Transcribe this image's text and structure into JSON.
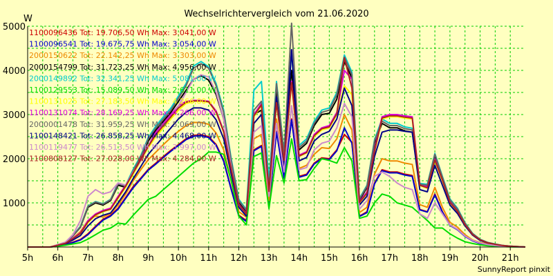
{
  "chart_data": {
    "type": "line",
    "title": "Wechselrichtervergleich vom 21.06.2020",
    "ylabel": "W",
    "footer": "SunnyReport pinxit",
    "grid": true,
    "xlim": [
      5,
      21.5
    ],
    "ylim": [
      0,
      5000
    ],
    "x_ticks": [
      "5h",
      "6h",
      "7h",
      "8h",
      "9h",
      "10h",
      "11h",
      "12h",
      "13h",
      "14h",
      "15h",
      "16h",
      "17h",
      "18h",
      "19h",
      "20h",
      "21h"
    ],
    "y_ticks": [
      "1000",
      "2000",
      "3000",
      "4000",
      "5000"
    ],
    "x": [
      5.0,
      5.25,
      5.5,
      5.75,
      6.0,
      6.25,
      6.5,
      6.75,
      7.0,
      7.25,
      7.5,
      7.75,
      8.0,
      8.25,
      8.5,
      8.75,
      9.0,
      9.25,
      9.5,
      9.75,
      10.0,
      10.25,
      10.5,
      10.75,
      11.0,
      11.25,
      11.5,
      11.75,
      12.0,
      12.25,
      12.5,
      12.75,
      13.0,
      13.25,
      13.5,
      13.75,
      14.0,
      14.25,
      14.5,
      14.75,
      15.0,
      15.25,
      15.5,
      15.75,
      16.0,
      16.25,
      16.5,
      16.75,
      17.0,
      17.25,
      17.5,
      17.75,
      18.0,
      18.25,
      18.5,
      18.75,
      19.0,
      19.25,
      19.5,
      19.75,
      20.0,
      20.25,
      20.5,
      20.75,
      21.0,
      21.25,
      21.5
    ],
    "series": [
      {
        "name": "1100096436",
        "legend": "1100096436 Tot: 19.706,50 Wh Max: 3.041,00 W",
        "color": "#cc0000",
        "values": [
          0,
          0,
          0,
          0,
          30,
          60,
          110,
          170,
          300,
          470,
          630,
          720,
          880,
          1120,
          1370,
          1560,
          1760,
          1900,
          2050,
          2190,
          2320,
          2450,
          2530,
          2540,
          2500,
          2320,
          1960,
          1320,
          720,
          600,
          2200,
          2300,
          950,
          2620,
          1580,
          2900,
          1600,
          1650,
          1900,
          2020,
          2000,
          2200,
          2550,
          2370,
          700,
          800,
          1450,
          1750,
          1700,
          1700,
          1650,
          1620,
          850,
          800,
          1200,
          800,
          500,
          400,
          250,
          150,
          90,
          60,
          40,
          20,
          10,
          5,
          0
        ]
      },
      {
        "name": "1100096541",
        "legend": "1100096541 Tot: 19.675,75 Wh Max: 3.054,00 W",
        "color": "#0000cc",
        "values": [
          0,
          0,
          0,
          0,
          20,
          50,
          100,
          160,
          280,
          450,
          610,
          700,
          860,
          1100,
          1340,
          1540,
          1740,
          1880,
          2030,
          2170,
          2300,
          2430,
          2510,
          2520,
          2480,
          2300,
          1940,
          1300,
          700,
          580,
          2180,
          2280,
          930,
          2600,
          1560,
          2880,
          1580,
          1630,
          1880,
          2000,
          1980,
          2180,
          2700,
          2350,
          690,
          780,
          1430,
          1730,
          1680,
          1680,
          1630,
          1600,
          840,
          790,
          1180,
          790,
          490,
          390,
          240,
          140,
          80,
          50,
          30,
          15,
          8,
          4,
          0
        ]
      },
      {
        "name": "2000150622",
        "legend": "2000150622 Tot: 22.142,25 Wh Max: 3.303,00 W",
        "color": "#ee8800",
        "values": [
          0,
          0,
          0,
          0,
          40,
          80,
          200,
          350,
          600,
          700,
          680,
          760,
          950,
          1200,
          1500,
          1750,
          1980,
          2150,
          2320,
          2480,
          2620,
          2750,
          2820,
          2820,
          2780,
          2580,
          2200,
          1500,
          800,
          680,
          2450,
          2550,
          1050,
          2900,
          1760,
          3200,
          1780,
          1850,
          2100,
          2250,
          2230,
          2450,
          3000,
          2650,
          780,
          900,
          1650,
          2000,
          1950,
          1950,
          1900,
          1870,
          960,
          900,
          1350,
          900,
          560,
          450,
          280,
          160,
          100,
          70,
          45,
          25,
          12,
          6,
          0
        ]
      },
      {
        "name": "2000154799",
        "legend": "2000154799 Tot: 31.723,25 Wh Max: 4.956,00 W",
        "color": "#000000",
        "values": [
          0,
          0,
          0,
          0,
          50,
          100,
          250,
          450,
          900,
          1000,
          950,
          1050,
          1400,
          1350,
          1700,
          2000,
          2400,
          2650,
          2850,
          3050,
          3300,
          3550,
          3800,
          3880,
          3780,
          3450,
          2900,
          1900,
          1000,
          800,
          3000,
          3100,
          1300,
          3600,
          2100,
          4000,
          2200,
          2350,
          2750,
          3000,
          3030,
          3350,
          4200,
          3830,
          1050,
          1350,
          2350,
          2800,
          2700,
          2700,
          2630,
          2600,
          1390,
          1370,
          2050,
          1550,
          1050,
          850,
          530,
          300,
          170,
          100,
          65,
          35,
          18,
          9,
          0
        ]
      },
      {
        "name": "2000149892",
        "legend": "2000149892 Tot: 32.341,25 Wh Max: 5.081,00 W",
        "color": "#00cccc",
        "values": [
          0,
          0,
          0,
          0,
          50,
          100,
          260,
          470,
          930,
          1030,
          980,
          1080,
          1450,
          1400,
          1760,
          2070,
          2480,
          2740,
          2950,
          3150,
          3420,
          3700,
          4100,
          4200,
          4080,
          3700,
          3100,
          2000,
          1080,
          850,
          3550,
          3750,
          1500,
          3750,
          2150,
          4400,
          2300,
          2450,
          2850,
          3100,
          3150,
          3500,
          4350,
          3960,
          1100,
          1400,
          2430,
          2900,
          2800,
          2800,
          2720,
          2690,
          1440,
          1420,
          2120,
          1600,
          1090,
          880,
          550,
          310,
          175,
          105,
          68,
          36,
          19,
          10,
          0
        ]
      },
      {
        "name": "1100129553",
        "legend": "1100129553 Tot: 15.089,50 Wh Max: 2.611,00 W",
        "color": "#00dd00",
        "values": [
          0,
          0,
          0,
          0,
          20,
          40,
          70,
          100,
          180,
          280,
          380,
          430,
          540,
          520,
          720,
          900,
          1080,
          1150,
          1300,
          1450,
          1600,
          1750,
          1900,
          2000,
          2150,
          2150,
          2100,
          1500,
          700,
          500,
          2050,
          2130,
          870,
          2070,
          1450,
          2450,
          1500,
          1530,
          1780,
          2000,
          1960,
          1900,
          2250,
          1950,
          650,
          700,
          1000,
          1200,
          1150,
          1000,
          950,
          900,
          750,
          600,
          430,
          430,
          300,
          200,
          120,
          80,
          50,
          30,
          20,
          10,
          5,
          2,
          0
        ]
      },
      {
        "name": "1100131025",
        "legend": "1100131025 Tot: 27.183,50 Wh Max: 4.266,00 W",
        "color": "#ffff00",
        "values": [
          0,
          0,
          0,
          0,
          45,
          90,
          190,
          300,
          550,
          720,
          800,
          850,
          1100,
          1350,
          1650,
          1950,
          2250,
          2500,
          2700,
          2900,
          3100,
          3250,
          3300,
          3300,
          3280,
          3050,
          2600,
          1750,
          950,
          740,
          2950,
          3200,
          1250,
          3250,
          1950,
          3700,
          2050,
          2130,
          2500,
          2650,
          2700,
          3000,
          3650,
          3450,
          1000,
          1200,
          2150,
          2900,
          2950,
          2950,
          2920,
          2900,
          1390,
          1330,
          1950,
          1500,
          1000,
          800,
          500,
          280,
          160,
          95,
          60,
          32,
          16,
          8,
          0
        ]
      },
      {
        "name": "1100131074",
        "legend": "1100131074 Tot: 28.169,25 Wh Max: 4.266,00 W",
        "color": "#dd00dd",
        "values": [
          0,
          0,
          0,
          0,
          45,
          90,
          200,
          320,
          600,
          750,
          830,
          880,
          1150,
          1400,
          1700,
          2000,
          2300,
          2600,
          2800,
          3000,
          3200,
          3300,
          3320,
          3320,
          3300,
          3080,
          2630,
          1780,
          970,
          760,
          3000,
          3250,
          1280,
          3300,
          1980,
          3750,
          2080,
          2160,
          2550,
          2700,
          2750,
          3050,
          4000,
          3800,
          1020,
          1250,
          2200,
          2950,
          3000,
          3000,
          2970,
          2950,
          1420,
          1360,
          1990,
          1530,
          1020,
          820,
          510,
          290,
          165,
          98,
          62,
          33,
          17,
          8,
          0
        ]
      },
      {
        "name": "2000001478",
        "legend": "2000001478 Tot: 31.959,25 Wh Max: 5.069,00 W",
        "color": "#666666",
        "values": [
          0,
          0,
          0,
          0,
          50,
          100,
          255,
          460,
          920,
          1020,
          970,
          1070,
          1430,
          1380,
          1730,
          2040,
          2450,
          2700,
          2900,
          3100,
          3370,
          3650,
          4050,
          4150,
          4050,
          3650,
          3050,
          1950,
          1050,
          830,
          3100,
          3300,
          1350,
          3700,
          2120,
          5069,
          2250,
          2400,
          2800,
          3050,
          3100,
          3450,
          4300,
          3900,
          1080,
          1380,
          2400,
          2850,
          2750,
          2750,
          2680,
          2650,
          1420,
          1400,
          2100,
          1580,
          1070,
          860,
          540,
          305,
          172,
          102,
          66,
          35,
          18,
          9,
          0
        ]
      },
      {
        "name": "1100148421",
        "legend": "1100148421 Tot: 26.858,25 Wh Max: 4.468,00 W",
        "color": "#000088",
        "values": [
          0,
          0,
          0,
          0,
          40,
          80,
          160,
          260,
          480,
          640,
          720,
          770,
          1000,
          1250,
          1550,
          1820,
          2100,
          2300,
          2500,
          2700,
          2900,
          3050,
          3150,
          3150,
          3100,
          2880,
          2450,
          1650,
          900,
          700,
          2800,
          3000,
          1200,
          3400,
          1850,
          4468,
          1950,
          2030,
          2400,
          2550,
          2620,
          2900,
          3600,
          3200,
          950,
          1150,
          2050,
          2600,
          2650,
          2650,
          2620,
          2600,
          1300,
          1250,
          1850,
          1400,
          950,
          760,
          480,
          270,
          150,
          90,
          58,
          30,
          15,
          7,
          0
        ]
      },
      {
        "name": "1100119477",
        "legend": "1100119477 Tot: 26.513,50 Wh Max: 3.997,00 W",
        "color": "#cc88cc",
        "values": [
          0,
          0,
          0,
          0,
          55,
          110,
          280,
          600,
          1150,
          1300,
          1200,
          1250,
          1450,
          1400,
          1700,
          1950,
          2300,
          2550,
          2750,
          2950,
          3200,
          3500,
          3800,
          3900,
          3850,
          3500,
          2900,
          1800,
          950,
          750,
          2600,
          2750,
          1150,
          2800,
          1700,
          3200,
          1750,
          1800,
          2200,
          2350,
          2400,
          2700,
          3250,
          2950,
          860,
          1050,
          1600,
          1700,
          1600,
          1450,
          1350,
          1300,
          750,
          650,
          1000,
          750,
          500,
          400,
          250,
          150,
          90,
          55,
          35,
          18,
          9,
          4,
          0
        ]
      },
      {
        "name": "1100808127",
        "legend": "1100808127 Tot: 27.028,00 Wh Max: 4.284,00 W",
        "color": "#aa2222",
        "values": [
          0,
          0,
          0,
          0,
          42,
          85,
          190,
          310,
          570,
          730,
          810,
          860,
          1120,
          1380,
          1680,
          1980,
          2280,
          2550,
          2750,
          2950,
          3150,
          3280,
          3310,
          3310,
          3290,
          3060,
          2610,
          1760,
          960,
          750,
          2970,
          3220,
          1260,
          3270,
          1960,
          3720,
          2060,
          2140,
          2520,
          2680,
          2720,
          3020,
          4284,
          3600,
          1010,
          1220,
          2170,
          2920,
          2970,
          2970,
          2940,
          2920,
          1400,
          1340,
          1970,
          1520,
          1010,
          810,
          505,
          285,
          162,
          96,
          61,
          33,
          16,
          8,
          0
        ]
      }
    ]
  }
}
